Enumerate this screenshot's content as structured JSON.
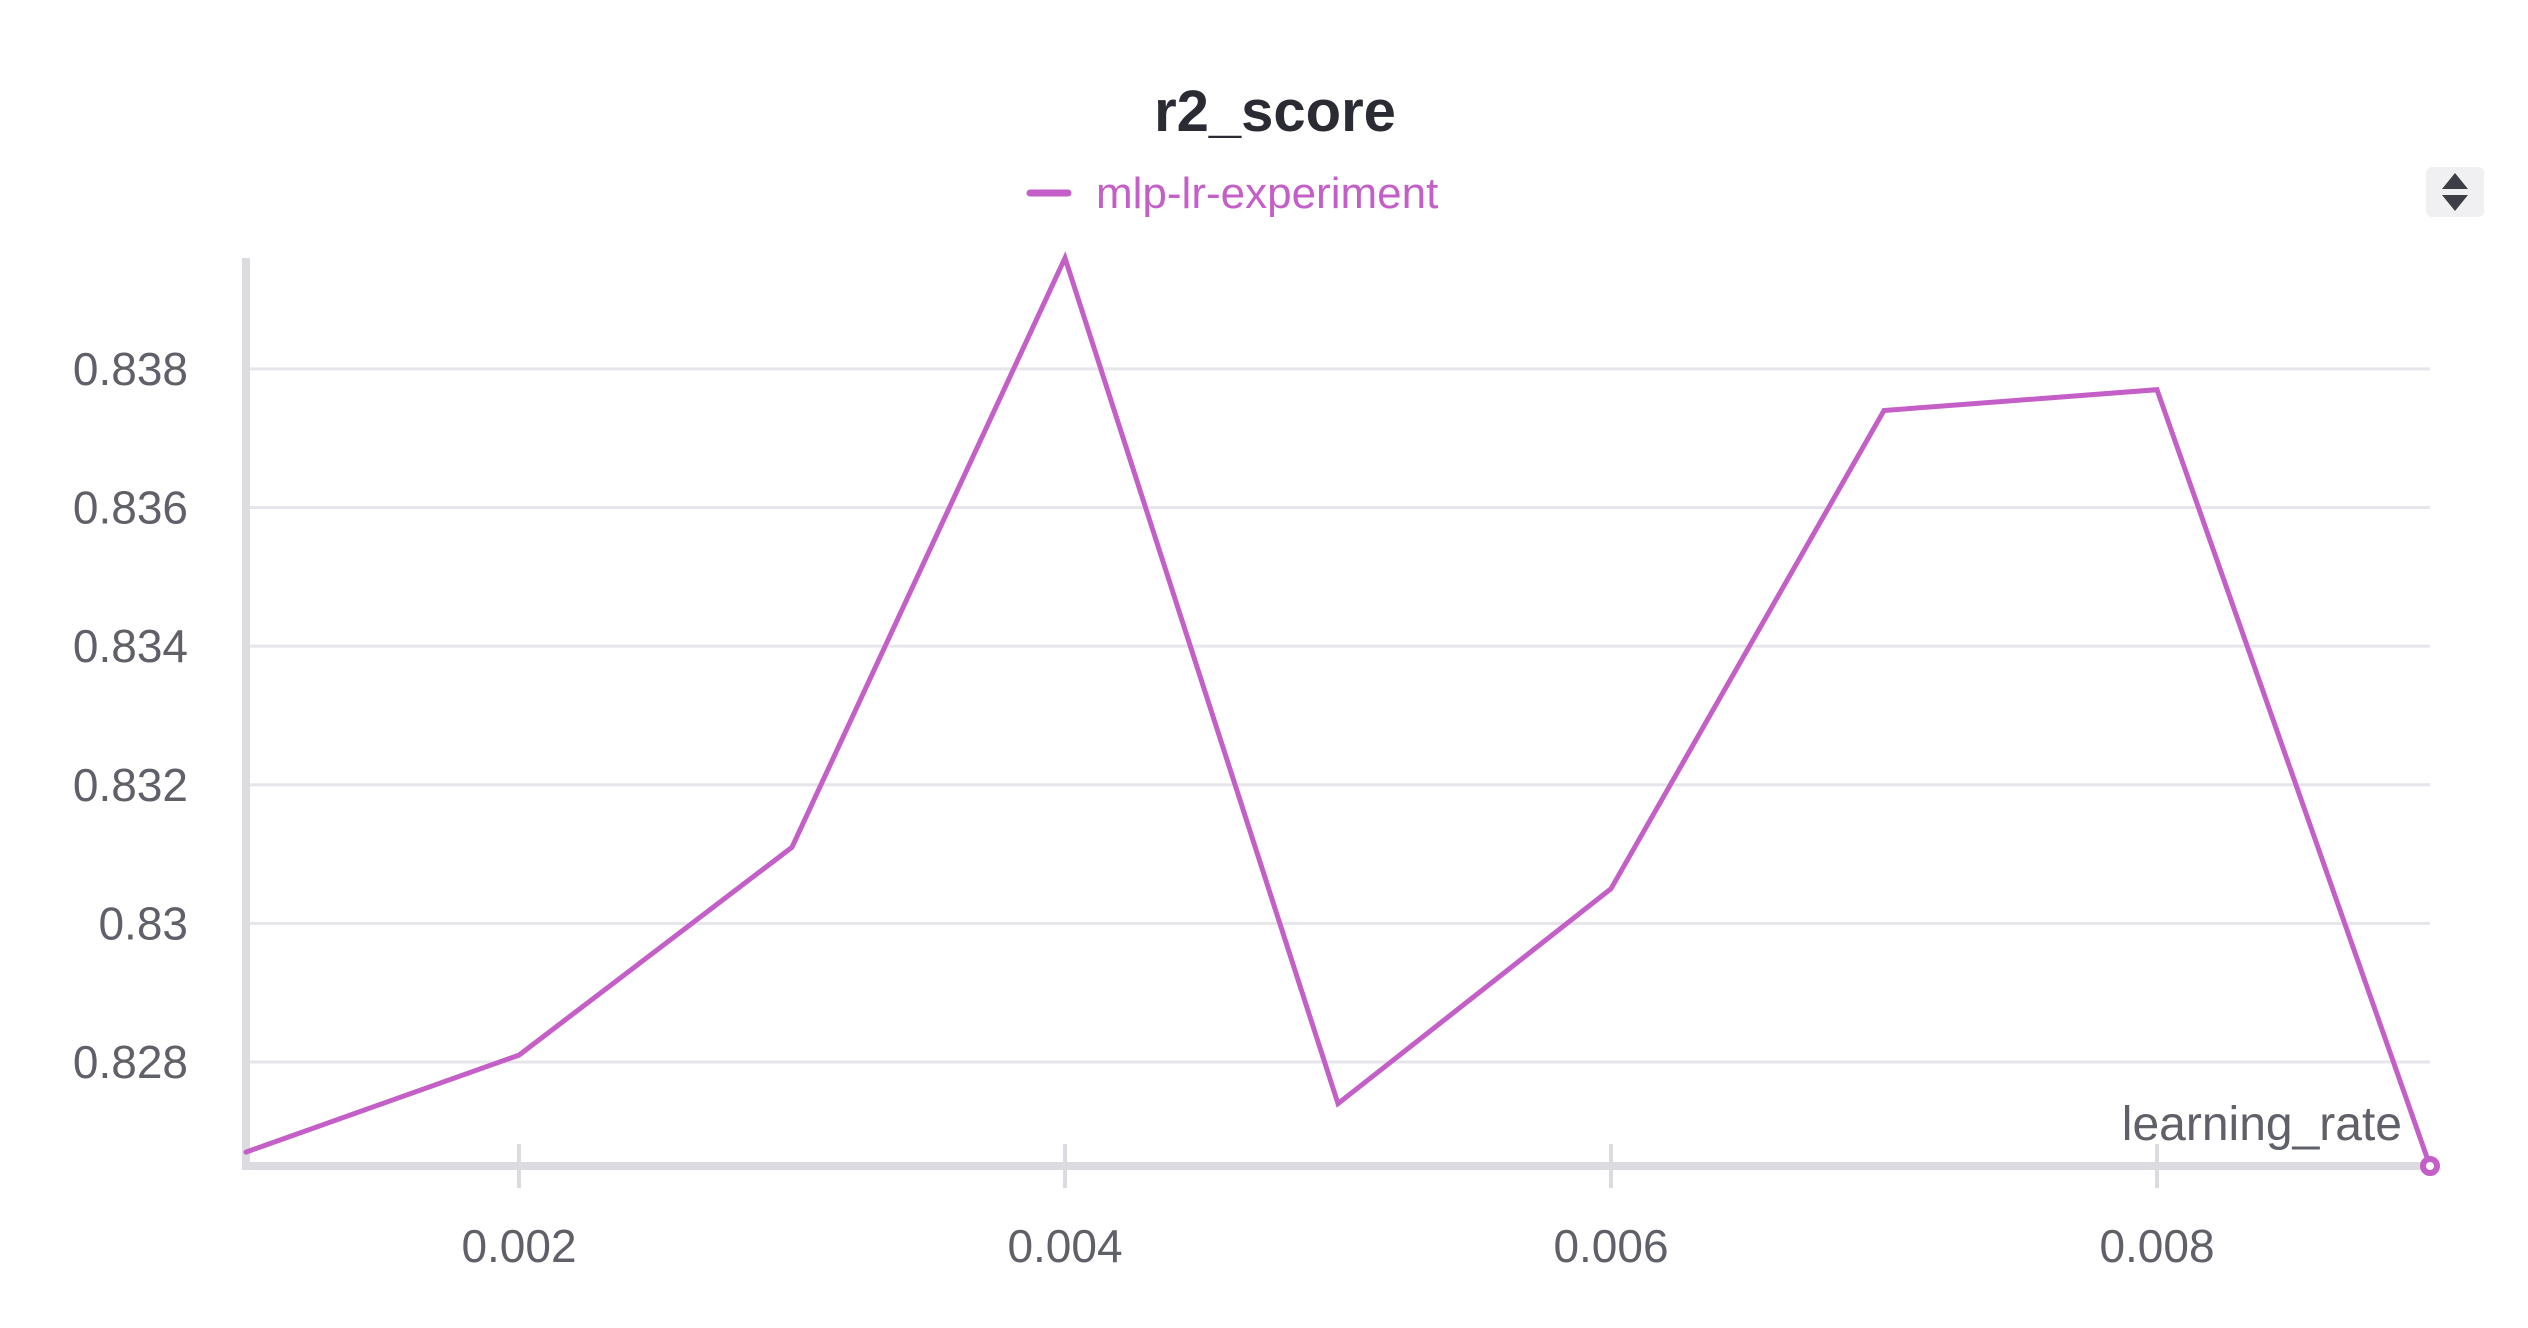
{
  "chart_data": {
    "type": "line",
    "title": "r2_score",
    "xlabel": "learning_rate",
    "ylabel": "",
    "x": [
      0.001,
      0.002,
      0.003,
      0.004,
      0.005,
      0.006,
      0.007,
      0.008,
      0.009
    ],
    "series": [
      {
        "name": "mlp-lr-experiment",
        "color": "#c45fc8",
        "values": [
          0.8267,
          0.8281,
          0.8311,
          0.8396,
          0.8274,
          0.8305,
          0.8374,
          0.8377,
          0.8265
        ]
      }
    ],
    "xlim": [
      0.001,
      0.009
    ],
    "ylim": [
      0.8265,
      0.8396
    ],
    "xticks": [
      0.002,
      0.004,
      0.006,
      0.008
    ],
    "xtick_labels": [
      "0.002",
      "0.004",
      "0.006",
      "0.008"
    ],
    "yticks": [
      0.828,
      0.83,
      0.832,
      0.834,
      0.836,
      0.838
    ],
    "ytick_labels": [
      "0.828",
      "0.83",
      "0.832",
      "0.834",
      "0.836",
      "0.838"
    ],
    "grid": true,
    "legend_position": "top-center",
    "end_marker": true
  },
  "controls": {
    "legend_toggle_icon": "sort-updown-icon"
  }
}
